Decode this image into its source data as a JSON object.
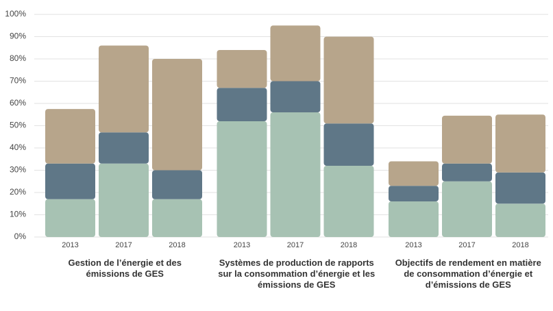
{
  "chart_data": {
    "type": "bar",
    "stacked": true,
    "ylim": [
      0,
      100
    ],
    "yticks": [
      {
        "value": 0,
        "label": "0%"
      },
      {
        "value": 10,
        "label": "10%"
      },
      {
        "value": 20,
        "label": "20%"
      },
      {
        "value": 30,
        "label": "30%"
      },
      {
        "value": 40,
        "label": "40%"
      },
      {
        "value": 50,
        "label": "50%"
      },
      {
        "value": 60,
        "label": "60%"
      },
      {
        "value": 70,
        "label": "70%"
      },
      {
        "value": 80,
        "label": "80%"
      },
      {
        "value": 90,
        "label": "90%"
      },
      {
        "value": 100,
        "label": "100%"
      }
    ],
    "grid": true,
    "groups": [
      {
        "label": "Gestion de l’énergie et des émissions de GES",
        "categories": [
          "2013",
          "2017",
          "2018"
        ]
      },
      {
        "label": "Systèmes de production de rapports sur la consommation d’énergie et les émissions de GES",
        "categories": [
          "2013",
          "2017",
          "2018"
        ]
      },
      {
        "label": "Objectifs de rendement en matière de consommation d’énergie et d’émissions de GES",
        "categories": [
          "2013",
          "2017",
          "2018"
        ]
      }
    ],
    "series": [
      {
        "color": "#a7c2b3",
        "values": [
          17,
          33,
          17,
          52,
          56,
          32,
          16,
          25,
          15
        ]
      },
      {
        "color": "#5f7787",
        "values": [
          16,
          14,
          13,
          15,
          14,
          19,
          7,
          8,
          14
        ]
      },
      {
        "color": "#b7a58b",
        "values": [
          24.5,
          39,
          50,
          17,
          25,
          39,
          11,
          21.5,
          26
        ]
      }
    ]
  }
}
